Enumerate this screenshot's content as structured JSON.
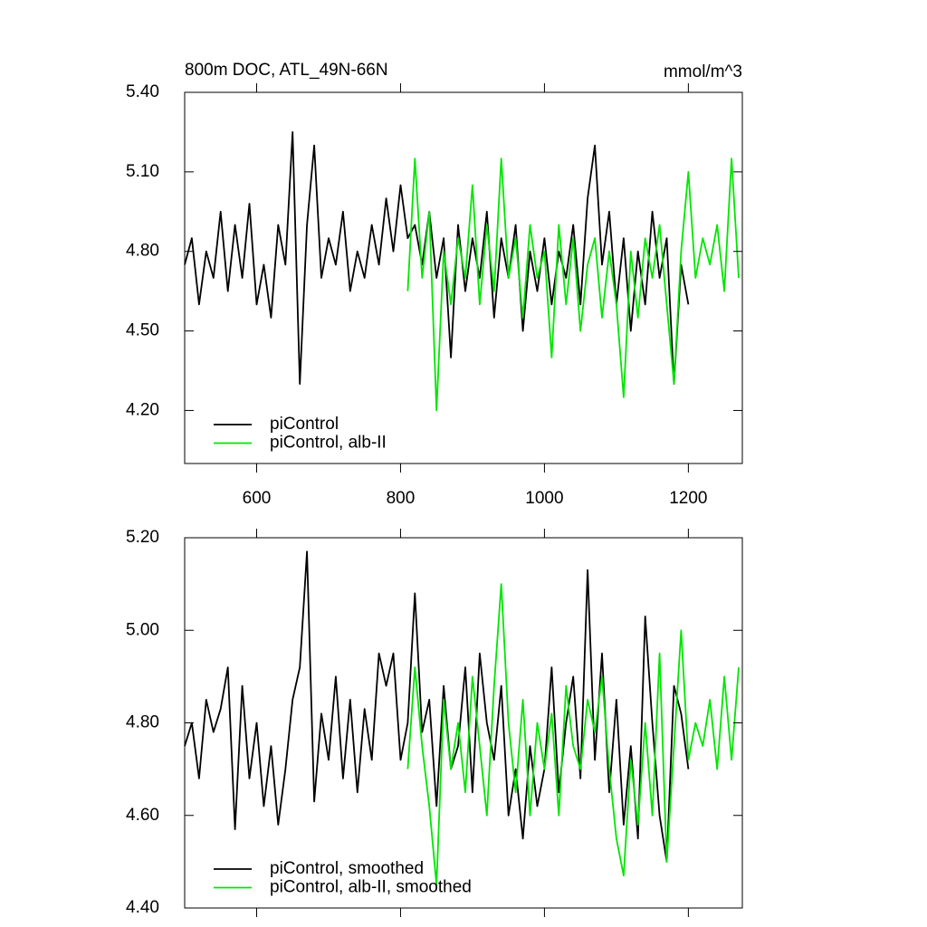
{
  "chart_data": [
    {
      "type": "line",
      "title": "800m DOC, ATL_49N-66N",
      "units": "mmol/m^3",
      "x": [
        500,
        510,
        520,
        530,
        540,
        550,
        560,
        570,
        580,
        590,
        600,
        610,
        620,
        630,
        640,
        650,
        660,
        670,
        680,
        690,
        700,
        710,
        720,
        730,
        740,
        750,
        760,
        770,
        780,
        790,
        800,
        810,
        820,
        830,
        840,
        850,
        860,
        870,
        880,
        890,
        900,
        910,
        920,
        930,
        940,
        950,
        960,
        970,
        980,
        990,
        1000,
        1010,
        1020,
        1030,
        1040,
        1050,
        1060,
        1070,
        1080,
        1090,
        1100,
        1110,
        1120,
        1130,
        1140,
        1150,
        1160,
        1170,
        1180,
        1190,
        1200,
        1210,
        1220,
        1230,
        1240,
        1250,
        1260,
        1270
      ],
      "series": [
        {
          "name": "piControl",
          "color": "#000000",
          "values": [
            4.75,
            4.85,
            4.6,
            4.8,
            4.7,
            4.95,
            4.65,
            4.9,
            4.7,
            4.98,
            4.6,
            4.75,
            4.55,
            4.9,
            4.75,
            5.25,
            4.3,
            4.9,
            5.2,
            4.7,
            4.85,
            4.75,
            4.95,
            4.65,
            4.8,
            4.7,
            4.9,
            4.75,
            5.0,
            4.8,
            5.05,
            4.85,
            4.9,
            4.75,
            4.95,
            4.7,
            4.85,
            4.4,
            4.9,
            4.65,
            4.85,
            4.7,
            4.95,
            4.55,
            4.85,
            4.7,
            4.9,
            4.5,
            4.8,
            4.65,
            4.85,
            4.6,
            4.8,
            4.7,
            4.9,
            4.6,
            5.0,
            5.2,
            4.75,
            4.95,
            4.6,
            4.85,
            4.5,
            4.8,
            4.6,
            4.95,
            4.7,
            4.85,
            4.3,
            4.75,
            4.6,
            null,
            null,
            null,
            null,
            null,
            null,
            null
          ]
        },
        {
          "name": "piControl, alb-II",
          "color": "#00e600",
          "values": [
            null,
            null,
            null,
            null,
            null,
            null,
            null,
            null,
            null,
            null,
            null,
            null,
            null,
            null,
            null,
            null,
            null,
            null,
            null,
            null,
            null,
            null,
            null,
            null,
            null,
            null,
            null,
            null,
            null,
            null,
            null,
            4.65,
            5.15,
            4.7,
            4.95,
            4.2,
            4.8,
            4.6,
            4.85,
            4.7,
            5.05,
            4.6,
            4.9,
            4.65,
            5.15,
            4.7,
            4.85,
            4.55,
            4.9,
            4.7,
            4.8,
            4.4,
            4.9,
            4.6,
            4.85,
            4.5,
            4.75,
            4.85,
            4.55,
            4.8,
            4.6,
            4.25,
            4.8,
            4.55,
            4.85,
            4.7,
            4.9,
            4.6,
            4.3,
            4.8,
            5.1,
            4.7,
            4.85,
            4.75,
            4.9,
            4.65,
            5.15,
            4.7
          ]
        }
      ],
      "xlim": [
        500,
        1275
      ],
      "xticks": [
        600,
        800,
        1000,
        1200
      ],
      "xtick_labels": true,
      "ylim": [
        4.0,
        5.4
      ],
      "yticks": [
        {
          "value": 4.2,
          "label": "4.20"
        },
        {
          "value": 4.5,
          "label": "4.50"
        },
        {
          "value": 4.8,
          "label": "4.80"
        },
        {
          "value": 5.1,
          "label": "5.10"
        },
        {
          "value": 5.4,
          "label": "5.40"
        }
      ],
      "legend": "lower left"
    },
    {
      "type": "line",
      "x": [
        500,
        510,
        520,
        530,
        540,
        550,
        560,
        570,
        580,
        590,
        600,
        610,
        620,
        630,
        640,
        650,
        660,
        670,
        680,
        690,
        700,
        710,
        720,
        730,
        740,
        750,
        760,
        770,
        780,
        790,
        800,
        810,
        820,
        830,
        840,
        850,
        860,
        870,
        880,
        890,
        900,
        910,
        920,
        930,
        940,
        950,
        960,
        970,
        980,
        990,
        1000,
        1010,
        1020,
        1030,
        1040,
        1050,
        1060,
        1070,
        1080,
        1090,
        1100,
        1110,
        1120,
        1130,
        1140,
        1150,
        1160,
        1170,
        1180,
        1190,
        1200,
        1210,
        1220,
        1230,
        1240,
        1250,
        1260,
        1270
      ],
      "series": [
        {
          "name": "piControl, smoothed",
          "color": "#000000",
          "values": [
            4.75,
            4.8,
            4.68,
            4.85,
            4.78,
            4.83,
            4.92,
            4.57,
            4.88,
            4.68,
            4.8,
            4.62,
            4.75,
            4.58,
            4.7,
            4.85,
            4.92,
            5.17,
            4.63,
            4.82,
            4.72,
            4.9,
            4.68,
            4.85,
            4.65,
            4.83,
            4.72,
            4.95,
            4.88,
            4.95,
            4.72,
            4.8,
            5.08,
            4.78,
            4.85,
            4.62,
            4.88,
            4.7,
            4.75,
            4.92,
            4.65,
            4.95,
            4.8,
            4.72,
            4.88,
            4.6,
            4.7,
            4.55,
            4.75,
            4.62,
            4.7,
            4.92,
            4.65,
            4.8,
            4.9,
            4.68,
            5.13,
            4.72,
            4.95,
            4.65,
            4.85,
            4.58,
            4.75,
            4.55,
            5.03,
            4.8,
            4.6,
            4.5,
            4.88,
            4.82,
            4.7,
            null,
            null,
            null,
            null,
            null,
            null,
            null
          ]
        },
        {
          "name": "piControl, alb-II, smoothed",
          "color": "#00e600",
          "values": [
            null,
            null,
            null,
            null,
            null,
            null,
            null,
            null,
            null,
            null,
            null,
            null,
            null,
            null,
            null,
            null,
            null,
            null,
            null,
            null,
            null,
            null,
            null,
            null,
            null,
            null,
            null,
            null,
            null,
            null,
            null,
            4.7,
            4.92,
            4.75,
            4.62,
            4.45,
            4.85,
            4.7,
            4.8,
            4.65,
            4.9,
            4.75,
            4.6,
            4.88,
            5.1,
            4.8,
            4.65,
            4.85,
            4.6,
            4.8,
            4.7,
            4.82,
            4.6,
            4.88,
            4.75,
            4.7,
            4.85,
            4.78,
            4.9,
            4.7,
            4.55,
            4.47,
            4.72,
            4.58,
            4.8,
            4.6,
            4.95,
            4.5,
            4.75,
            5.0,
            4.72,
            4.8,
            4.75,
            4.85,
            4.7,
            4.9,
            4.72,
            4.92
          ]
        }
      ],
      "xlim": [
        500,
        1275
      ],
      "xticks": [
        600,
        800,
        1000,
        1200
      ],
      "xtick_labels": false,
      "ylim": [
        4.4,
        5.2
      ],
      "yticks": [
        {
          "value": 4.4,
          "label": "4.40"
        },
        {
          "value": 4.6,
          "label": "4.60"
        },
        {
          "value": 4.8,
          "label": "4.80"
        },
        {
          "value": 5.0,
          "label": "5.00"
        },
        {
          "value": 5.2,
          "label": "5.20"
        }
      ],
      "legend": "lower left"
    }
  ]
}
